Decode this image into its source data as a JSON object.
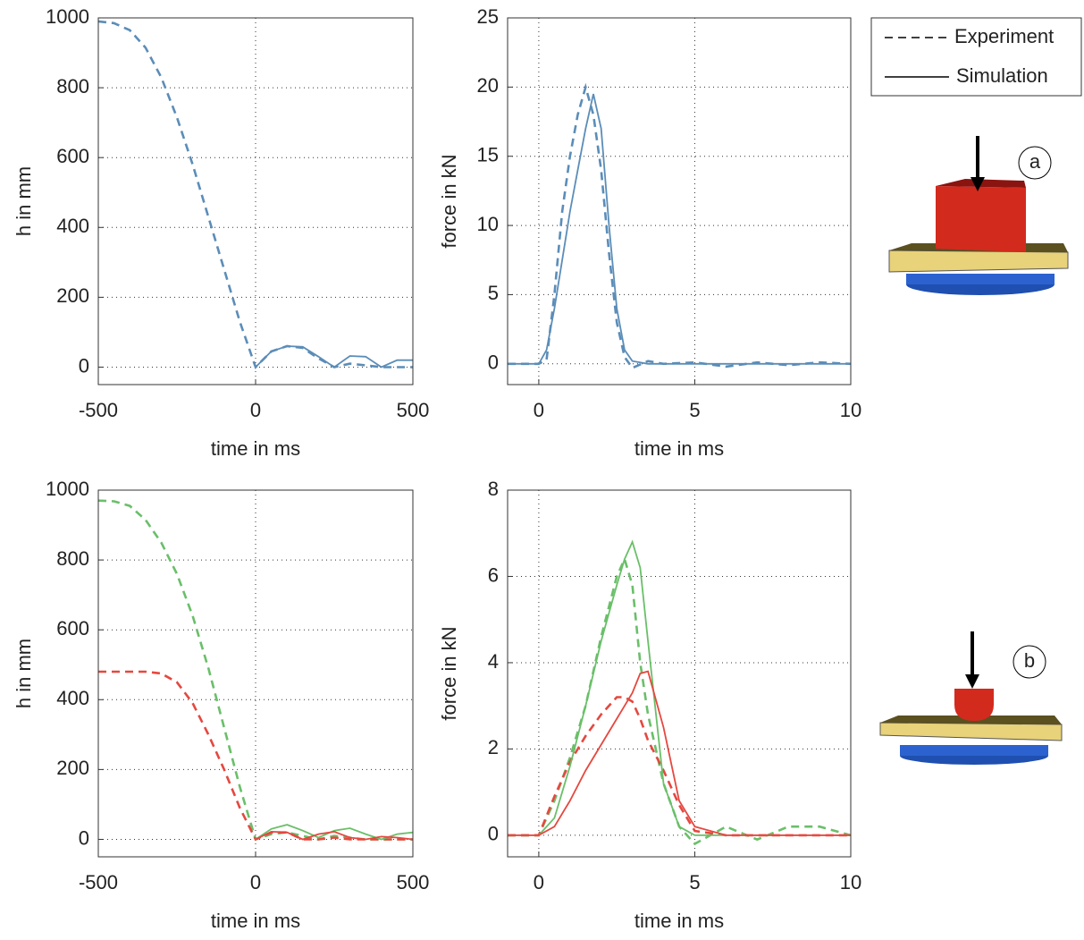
{
  "chart_data": [
    {
      "type": "line",
      "xlabel": "time in ms",
      "ylabel": "h in mm",
      "xlim": [
        -500,
        500
      ],
      "ylim": [
        -50,
        1000
      ],
      "xticks": [
        -500,
        0,
        500
      ],
      "yticks": [
        0,
        200,
        400,
        600,
        800,
        1000
      ],
      "grid": true,
      "x": [
        -500,
        -450,
        -400,
        -350,
        -300,
        -250,
        -200,
        -150,
        -100,
        -50,
        0,
        50,
        100,
        150,
        200,
        250,
        300,
        350,
        400,
        450,
        500
      ],
      "series": [
        {
          "color": "#5b8db8",
          "style": "dashed",
          "values": [
            990,
            985,
            965,
            915,
            830,
            715,
            580,
            430,
            280,
            130,
            0,
            45,
            60,
            55,
            25,
            0,
            10,
            5,
            0,
            0,
            0
          ]
        },
        {
          "color": "#5b8db8",
          "style": "solid",
          "values": [
            null,
            null,
            null,
            null,
            null,
            null,
            null,
            null,
            null,
            null,
            0,
            45,
            60,
            58,
            30,
            0,
            32,
            30,
            0,
            20,
            20
          ]
        }
      ]
    },
    {
      "type": "line",
      "xlabel": "time in ms",
      "ylabel": "force in kN",
      "xlim": [
        -1,
        10
      ],
      "ylim": [
        -1.5,
        25
      ],
      "xticks": [
        0,
        5,
        10
      ],
      "yticks": [
        0,
        5,
        10,
        15,
        20,
        25
      ],
      "grid": true,
      "x": [
        -1,
        0,
        0.25,
        0.5,
        0.75,
        1,
        1.25,
        1.5,
        1.75,
        2,
        2.25,
        2.5,
        2.75,
        3,
        3.5,
        4,
        5,
        6,
        7,
        8,
        9,
        10
      ],
      "series": [
        {
          "color": "#5b8db8",
          "style": "dashed",
          "values": [
            0,
            0,
            0.3,
            5,
            11,
            15,
            18,
            20,
            18,
            14,
            8,
            3,
            0.5,
            -0.3,
            0.2,
            0,
            0.1,
            -0.2,
            0.1,
            -0.1,
            0.1,
            0
          ]
        },
        {
          "color": "#5b8db8",
          "style": "solid",
          "values": [
            0,
            0,
            1,
            4,
            7.5,
            11,
            14,
            17,
            19.5,
            17,
            10,
            4,
            1,
            0.2,
            0,
            0,
            0,
            0,
            0,
            0,
            0,
            0
          ]
        }
      ]
    },
    {
      "type": "line",
      "xlabel": "time in ms",
      "ylabel": "h in mm",
      "xlim": [
        -500,
        500
      ],
      "ylim": [
        -50,
        1000
      ],
      "xticks": [
        -500,
        0,
        500
      ],
      "yticks": [
        0,
        200,
        400,
        600,
        800,
        1000
      ],
      "grid": true,
      "x": [
        -500,
        -450,
        -400,
        -350,
        -300,
        -250,
        -200,
        -150,
        -100,
        -50,
        0,
        50,
        100,
        150,
        200,
        250,
        300,
        350,
        400,
        450,
        500
      ],
      "series": [
        {
          "color": "#6abf69",
          "style": "dashed",
          "values": [
            970,
            968,
            955,
            915,
            850,
            760,
            640,
            490,
            320,
            150,
            0,
            15,
            20,
            10,
            0,
            10,
            5,
            0,
            0,
            0,
            0
          ]
        },
        {
          "color": "#e5483f",
          "style": "dashed",
          "values": [
            480,
            480,
            480,
            480,
            475,
            450,
            390,
            300,
            200,
            90,
            0,
            20,
            20,
            0,
            0,
            5,
            0,
            0,
            0,
            0,
            0
          ]
        },
        {
          "color": "#6abf69",
          "style": "solid",
          "values": [
            null,
            null,
            null,
            null,
            null,
            null,
            null,
            null,
            null,
            null,
            0,
            30,
            42,
            25,
            5,
            25,
            32,
            15,
            0,
            15,
            20
          ]
        },
        {
          "color": "#e5483f",
          "style": "solid",
          "values": [
            null,
            null,
            null,
            null,
            null,
            null,
            null,
            null,
            null,
            null,
            0,
            22,
            20,
            0,
            15,
            22,
            5,
            0,
            8,
            5,
            0
          ]
        }
      ]
    },
    {
      "type": "line",
      "xlabel": "time in ms",
      "ylabel": "force in kN",
      "xlim": [
        -1,
        10
      ],
      "ylim": [
        -0.5,
        8
      ],
      "xticks": [
        0,
        5,
        10
      ],
      "yticks": [
        0,
        2,
        4,
        6,
        8
      ],
      "grid": true,
      "x": [
        -1,
        0,
        0.5,
        1,
        1.5,
        2,
        2.5,
        2.75,
        3,
        3.25,
        3.5,
        4,
        4.5,
        5,
        6,
        7,
        8,
        9,
        10
      ],
      "series": [
        {
          "color": "#6abf69",
          "style": "dashed",
          "values": [
            0,
            0,
            0.8,
            1.8,
            3,
            4.6,
            6,
            6.4,
            5.8,
            4,
            2.8,
            1.2,
            0.2,
            -0.2,
            0.2,
            -0.1,
            0.2,
            0.2,
            0
          ]
        },
        {
          "color": "#e5483f",
          "style": "dashed",
          "values": [
            0,
            0,
            0.9,
            1.7,
            2.3,
            2.8,
            3.2,
            3.2,
            3.1,
            2.7,
            2.2,
            1.5,
            0.7,
            0.1,
            0,
            0,
            0,
            0,
            0
          ]
        },
        {
          "color": "#6abf69",
          "style": "solid",
          "values": [
            0,
            0,
            0.4,
            1.6,
            3,
            4.5,
            5.8,
            6.4,
            6.8,
            6.2,
            4.5,
            1.2,
            0.2,
            0,
            0,
            0,
            0,
            0,
            0
          ]
        },
        {
          "color": "#e5483f",
          "style": "solid",
          "values": [
            0,
            0,
            0.2,
            0.8,
            1.5,
            2.1,
            2.7,
            3.0,
            3.3,
            3.75,
            3.8,
            2.5,
            0.8,
            0.2,
            0,
            0,
            0,
            0,
            0
          ]
        }
      ]
    }
  ],
  "legend": [
    {
      "label": "Experiment",
      "style": "dashed"
    },
    {
      "label": "Simulation",
      "style": "solid"
    }
  ],
  "labels": [
    "a",
    "b"
  ]
}
